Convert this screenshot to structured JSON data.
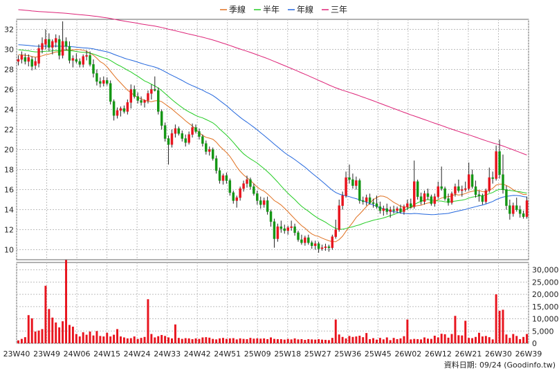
{
  "chart_data": {
    "type": "candlestick",
    "legend": [
      {
        "name": "季線",
        "color": "#e07020"
      },
      {
        "name": "半年",
        "color": "#22cc22"
      },
      {
        "name": "年線",
        "color": "#2266dd"
      },
      {
        "name": "三年",
        "color": "#dd2277"
      }
    ],
    "price_axis": {
      "min": 9,
      "max": 33,
      "ticks": [
        10,
        12,
        14,
        16,
        18,
        20,
        22,
        24,
        26,
        28,
        30,
        32
      ]
    },
    "volume_axis": {
      "min": 0,
      "max": 33000,
      "ticks": [
        0,
        5000,
        10000,
        15000,
        20000,
        25000,
        30000
      ],
      "tick_labels": [
        "0",
        "5,000",
        "10,000",
        "15,000",
        "20,000",
        "25,000",
        "30,000"
      ]
    },
    "x_labels": [
      "23W40",
      "23W49",
      "24W06",
      "24W15",
      "24W24",
      "24W33",
      "24W42",
      "24W51",
      "25W09",
      "25W18",
      "25W27",
      "25W36",
      "25W45",
      "26W02",
      "26W12",
      "26W21",
      "26W30",
      "26W39"
    ],
    "candles": [
      {
        "o": 28.8,
        "h": 29.4,
        "l": 28.4,
        "c": 29.0
      },
      {
        "o": 29.0,
        "h": 29.8,
        "l": 28.6,
        "c": 29.4
      },
      {
        "o": 29.2,
        "h": 29.6,
        "l": 28.5,
        "c": 28.8
      },
      {
        "o": 28.8,
        "h": 29.5,
        "l": 28.3,
        "c": 29.2
      },
      {
        "o": 29.0,
        "h": 29.3,
        "l": 27.9,
        "c": 28.3
      },
      {
        "o": 28.4,
        "h": 29.2,
        "l": 28.0,
        "c": 28.8
      },
      {
        "o": 28.6,
        "h": 30.5,
        "l": 28.2,
        "c": 30.1
      },
      {
        "o": 30.0,
        "h": 31.2,
        "l": 29.6,
        "c": 30.6
      },
      {
        "o": 30.5,
        "h": 32.0,
        "l": 30.0,
        "c": 31.0
      },
      {
        "o": 31.0,
        "h": 31.6,
        "l": 29.8,
        "c": 30.2
      },
      {
        "o": 30.2,
        "h": 31.0,
        "l": 29.5,
        "c": 30.8
      },
      {
        "o": 30.7,
        "h": 31.5,
        "l": 30.2,
        "c": 31.1
      },
      {
        "o": 31.0,
        "h": 31.4,
        "l": 29.0,
        "c": 29.4
      },
      {
        "o": 29.4,
        "h": 32.8,
        "l": 29.1,
        "c": 30.8
      },
      {
        "o": 30.8,
        "h": 31.2,
        "l": 29.9,
        "c": 30.3
      },
      {
        "o": 30.3,
        "h": 30.8,
        "l": 28.6,
        "c": 28.9
      },
      {
        "o": 28.9,
        "h": 29.4,
        "l": 28.2,
        "c": 29.1
      },
      {
        "o": 29.0,
        "h": 29.6,
        "l": 28.6,
        "c": 28.8
      },
      {
        "o": 28.8,
        "h": 29.1,
        "l": 28.2,
        "c": 28.5
      },
      {
        "o": 28.5,
        "h": 29.5,
        "l": 28.2,
        "c": 29.3
      },
      {
        "o": 29.3,
        "h": 29.9,
        "l": 28.9,
        "c": 29.4
      },
      {
        "o": 29.4,
        "h": 29.8,
        "l": 28.3,
        "c": 28.5
      },
      {
        "o": 28.5,
        "h": 29.0,
        "l": 27.2,
        "c": 27.6
      },
      {
        "o": 27.6,
        "h": 28.0,
        "l": 26.4,
        "c": 26.8
      },
      {
        "o": 26.8,
        "h": 27.2,
        "l": 26.2,
        "c": 26.6
      },
      {
        "o": 26.6,
        "h": 27.3,
        "l": 26.3,
        "c": 26.9
      },
      {
        "o": 26.9,
        "h": 27.2,
        "l": 26.4,
        "c": 26.6
      },
      {
        "o": 26.6,
        "h": 26.9,
        "l": 24.5,
        "c": 24.8
      },
      {
        "o": 24.8,
        "h": 25.0,
        "l": 22.9,
        "c": 23.4
      },
      {
        "o": 23.4,
        "h": 24.2,
        "l": 23.1,
        "c": 23.9
      },
      {
        "o": 23.9,
        "h": 24.3,
        "l": 23.3,
        "c": 24.1
      },
      {
        "o": 24.1,
        "h": 24.4,
        "l": 23.6,
        "c": 23.8
      },
      {
        "o": 23.8,
        "h": 25.0,
        "l": 23.5,
        "c": 24.7
      },
      {
        "o": 24.7,
        "h": 26.5,
        "l": 24.1,
        "c": 26.0
      },
      {
        "o": 26.0,
        "h": 26.4,
        "l": 25.1,
        "c": 25.3
      },
      {
        "o": 25.3,
        "h": 25.7,
        "l": 24.6,
        "c": 24.9
      },
      {
        "o": 24.9,
        "h": 25.3,
        "l": 24.4,
        "c": 24.7
      },
      {
        "o": 24.7,
        "h": 25.0,
        "l": 24.2,
        "c": 24.9
      },
      {
        "o": 24.9,
        "h": 25.9,
        "l": 24.6,
        "c": 25.6
      },
      {
        "o": 25.6,
        "h": 26.5,
        "l": 25.0,
        "c": 26.0
      },
      {
        "o": 26.0,
        "h": 27.3,
        "l": 25.8,
        "c": 25.9
      },
      {
        "o": 25.9,
        "h": 26.2,
        "l": 23.5,
        "c": 23.8
      },
      {
        "o": 23.8,
        "h": 24.0,
        "l": 22.0,
        "c": 22.4
      },
      {
        "o": 22.4,
        "h": 22.7,
        "l": 20.8,
        "c": 21.1
      },
      {
        "o": 21.1,
        "h": 21.4,
        "l": 18.5,
        "c": 20.5
      },
      {
        "o": 20.5,
        "h": 22.0,
        "l": 20.2,
        "c": 21.6
      },
      {
        "o": 21.6,
        "h": 22.5,
        "l": 21.2,
        "c": 22.1
      },
      {
        "o": 22.1,
        "h": 22.3,
        "l": 21.4,
        "c": 21.6
      },
      {
        "o": 21.6,
        "h": 21.9,
        "l": 20.8,
        "c": 21.1
      },
      {
        "o": 21.1,
        "h": 21.5,
        "l": 20.3,
        "c": 20.7
      },
      {
        "o": 20.7,
        "h": 21.8,
        "l": 20.5,
        "c": 21.5
      },
      {
        "o": 21.5,
        "h": 22.6,
        "l": 21.2,
        "c": 22.2
      },
      {
        "o": 22.2,
        "h": 22.5,
        "l": 21.6,
        "c": 21.8
      },
      {
        "o": 21.8,
        "h": 22.1,
        "l": 21.0,
        "c": 21.3
      },
      {
        "o": 21.3,
        "h": 21.5,
        "l": 20.3,
        "c": 20.6
      },
      {
        "o": 20.6,
        "h": 20.9,
        "l": 19.5,
        "c": 19.8
      },
      {
        "o": 19.8,
        "h": 20.3,
        "l": 19.4,
        "c": 20.0
      },
      {
        "o": 20.0,
        "h": 20.2,
        "l": 18.9,
        "c": 19.1
      },
      {
        "o": 19.1,
        "h": 19.4,
        "l": 17.6,
        "c": 17.9
      },
      {
        "o": 17.9,
        "h": 18.2,
        "l": 16.6,
        "c": 16.9
      },
      {
        "o": 16.9,
        "h": 17.6,
        "l": 16.5,
        "c": 17.4
      },
      {
        "o": 17.4,
        "h": 17.7,
        "l": 16.6,
        "c": 16.9
      },
      {
        "o": 16.9,
        "h": 17.1,
        "l": 15.4,
        "c": 15.7
      },
      {
        "o": 15.7,
        "h": 15.9,
        "l": 14.6,
        "c": 14.9
      },
      {
        "o": 14.9,
        "h": 15.4,
        "l": 14.2,
        "c": 15.2
      },
      {
        "o": 15.2,
        "h": 16.3,
        "l": 14.9,
        "c": 16.1
      },
      {
        "o": 16.1,
        "h": 16.9,
        "l": 15.8,
        "c": 16.6
      },
      {
        "o": 16.6,
        "h": 17.4,
        "l": 16.2,
        "c": 17.0
      },
      {
        "o": 17.0,
        "h": 17.2,
        "l": 16.0,
        "c": 16.3
      },
      {
        "o": 16.3,
        "h": 16.6,
        "l": 15.4,
        "c": 15.6
      },
      {
        "o": 15.6,
        "h": 15.9,
        "l": 14.5,
        "c": 14.9
      },
      {
        "o": 14.9,
        "h": 15.3,
        "l": 14.1,
        "c": 14.5
      },
      {
        "o": 14.5,
        "h": 15.2,
        "l": 14.2,
        "c": 14.9
      },
      {
        "o": 14.9,
        "h": 15.3,
        "l": 13.5,
        "c": 13.8
      },
      {
        "o": 13.8,
        "h": 14.0,
        "l": 12.3,
        "c": 12.8
      },
      {
        "o": 12.8,
        "h": 13.1,
        "l": 10.2,
        "c": 11.1
      },
      {
        "o": 11.1,
        "h": 12.6,
        "l": 10.8,
        "c": 12.3
      },
      {
        "o": 12.3,
        "h": 12.9,
        "l": 11.7,
        "c": 12.1
      },
      {
        "o": 12.1,
        "h": 12.5,
        "l": 11.6,
        "c": 11.9
      },
      {
        "o": 11.9,
        "h": 12.4,
        "l": 11.5,
        "c": 12.2
      },
      {
        "o": 12.2,
        "h": 12.9,
        "l": 11.9,
        "c": 12.3
      },
      {
        "o": 12.3,
        "h": 12.6,
        "l": 11.4,
        "c": 11.7
      },
      {
        "o": 11.7,
        "h": 11.9,
        "l": 10.8,
        "c": 11.0
      },
      {
        "o": 11.0,
        "h": 11.5,
        "l": 10.5,
        "c": 10.7
      },
      {
        "o": 10.7,
        "h": 11.4,
        "l": 10.4,
        "c": 11.2
      },
      {
        "o": 11.2,
        "h": 11.5,
        "l": 10.5,
        "c": 10.7
      },
      {
        "o": 10.7,
        "h": 10.9,
        "l": 10.1,
        "c": 10.4
      },
      {
        "o": 10.4,
        "h": 10.9,
        "l": 10.0,
        "c": 10.6
      },
      {
        "o": 10.6,
        "h": 10.8,
        "l": 9.7,
        "c": 10.1
      },
      {
        "o": 10.1,
        "h": 10.5,
        "l": 9.9,
        "c": 10.2
      },
      {
        "o": 10.2,
        "h": 10.6,
        "l": 9.9,
        "c": 10.3
      },
      {
        "o": 10.3,
        "h": 10.5,
        "l": 9.8,
        "c": 10.2
      },
      {
        "o": 10.2,
        "h": 11.5,
        "l": 10.0,
        "c": 11.3
      },
      {
        "o": 11.3,
        "h": 13.0,
        "l": 11.1,
        "c": 12.0
      },
      {
        "o": 12.0,
        "h": 15.0,
        "l": 11.8,
        "c": 14.4
      },
      {
        "o": 14.4,
        "h": 15.8,
        "l": 14.0,
        "c": 15.4
      },
      {
        "o": 15.4,
        "h": 17.8,
        "l": 15.2,
        "c": 17.2
      },
      {
        "o": 17.2,
        "h": 18.5,
        "l": 16.6,
        "c": 17.0
      },
      {
        "o": 17.0,
        "h": 17.6,
        "l": 16.1,
        "c": 16.4
      },
      {
        "o": 16.4,
        "h": 17.3,
        "l": 16.0,
        "c": 16.9
      },
      {
        "o": 16.9,
        "h": 17.1,
        "l": 14.6,
        "c": 14.9
      },
      {
        "o": 14.9,
        "h": 15.3,
        "l": 14.5,
        "c": 14.8
      },
      {
        "o": 14.8,
        "h": 15.5,
        "l": 14.4,
        "c": 15.2
      },
      {
        "o": 15.2,
        "h": 15.6,
        "l": 14.5,
        "c": 14.7
      },
      {
        "o": 14.7,
        "h": 15.1,
        "l": 14.2,
        "c": 14.6
      },
      {
        "o": 14.6,
        "h": 15.4,
        "l": 14.1,
        "c": 14.3
      },
      {
        "o": 14.3,
        "h": 14.8,
        "l": 13.6,
        "c": 13.9
      },
      {
        "o": 13.9,
        "h": 14.4,
        "l": 13.4,
        "c": 14.1
      },
      {
        "o": 14.1,
        "h": 14.6,
        "l": 13.5,
        "c": 13.8
      },
      {
        "o": 13.8,
        "h": 14.3,
        "l": 13.2,
        "c": 14.0
      },
      {
        "o": 14.0,
        "h": 14.4,
        "l": 13.6,
        "c": 13.9
      },
      {
        "o": 13.9,
        "h": 14.3,
        "l": 13.7,
        "c": 14.1
      },
      {
        "o": 14.1,
        "h": 14.5,
        "l": 13.6,
        "c": 13.8
      },
      {
        "o": 13.8,
        "h": 14.5,
        "l": 13.5,
        "c": 14.3
      },
      {
        "o": 14.3,
        "h": 15.0,
        "l": 14.0,
        "c": 14.6
      },
      {
        "o": 14.6,
        "h": 15.1,
        "l": 14.1,
        "c": 14.3
      },
      {
        "o": 14.3,
        "h": 18.9,
        "l": 14.1,
        "c": 16.8
      },
      {
        "o": 16.8,
        "h": 17.0,
        "l": 15.0,
        "c": 15.3
      },
      {
        "o": 15.3,
        "h": 15.7,
        "l": 14.5,
        "c": 14.8
      },
      {
        "o": 14.8,
        "h": 15.9,
        "l": 14.5,
        "c": 15.6
      },
      {
        "o": 15.6,
        "h": 16.1,
        "l": 15.0,
        "c": 15.3
      },
      {
        "o": 15.3,
        "h": 15.5,
        "l": 14.4,
        "c": 14.6
      },
      {
        "o": 14.6,
        "h": 15.6,
        "l": 14.3,
        "c": 15.3
      },
      {
        "o": 15.3,
        "h": 16.8,
        "l": 15.1,
        "c": 16.3
      },
      {
        "o": 16.3,
        "h": 18.3,
        "l": 15.9,
        "c": 16.1
      },
      {
        "o": 16.1,
        "h": 16.3,
        "l": 14.9,
        "c": 15.1
      },
      {
        "o": 15.1,
        "h": 15.6,
        "l": 14.4,
        "c": 14.7
      },
      {
        "o": 14.7,
        "h": 15.8,
        "l": 14.5,
        "c": 15.6
      },
      {
        "o": 15.6,
        "h": 16.6,
        "l": 15.3,
        "c": 16.3
      },
      {
        "o": 16.3,
        "h": 17.0,
        "l": 15.7,
        "c": 15.9
      },
      {
        "o": 15.9,
        "h": 16.4,
        "l": 15.3,
        "c": 16.0
      },
      {
        "o": 16.0,
        "h": 16.8,
        "l": 15.8,
        "c": 16.1
      },
      {
        "o": 16.1,
        "h": 18.7,
        "l": 15.9,
        "c": 17.5
      },
      {
        "o": 17.5,
        "h": 18.0,
        "l": 16.1,
        "c": 16.3
      },
      {
        "o": 16.3,
        "h": 16.9,
        "l": 15.2,
        "c": 15.5
      },
      {
        "o": 15.5,
        "h": 15.9,
        "l": 14.8,
        "c": 15.4
      },
      {
        "o": 15.4,
        "h": 15.6,
        "l": 14.5,
        "c": 14.8
      },
      {
        "o": 14.8,
        "h": 16.1,
        "l": 14.6,
        "c": 15.9
      },
      {
        "o": 15.9,
        "h": 18.2,
        "l": 15.7,
        "c": 17.2
      },
      {
        "o": 17.2,
        "h": 17.8,
        "l": 16.6,
        "c": 17.1
      },
      {
        "o": 17.1,
        "h": 20.4,
        "l": 16.9,
        "c": 19.8
      },
      {
        "o": 19.8,
        "h": 21.0,
        "l": 17.1,
        "c": 17.5
      },
      {
        "o": 17.5,
        "h": 19.5,
        "l": 15.6,
        "c": 16.0
      },
      {
        "o": 16.0,
        "h": 16.4,
        "l": 14.0,
        "c": 14.4
      },
      {
        "o": 14.4,
        "h": 15.0,
        "l": 13.0,
        "c": 13.6
      },
      {
        "o": 13.6,
        "h": 14.7,
        "l": 13.3,
        "c": 14.4
      },
      {
        "o": 14.4,
        "h": 15.2,
        "l": 13.8,
        "c": 14.0
      },
      {
        "o": 14.0,
        "h": 14.4,
        "l": 13.2,
        "c": 13.6
      },
      {
        "o": 13.6,
        "h": 13.9,
        "l": 13.1,
        "c": 13.3
      },
      {
        "o": 13.3,
        "h": 15.3,
        "l": 13.1,
        "c": 14.9
      }
    ],
    "volumes": [
      1200,
      1800,
      2500,
      11500,
      10200,
      4800,
      5200,
      5800,
      23500,
      14000,
      10500,
      8500,
      6500,
      9000,
      34000,
      7500,
      6800,
      3800,
      2800,
      4500,
      3500,
      4800,
      3200,
      5000,
      3000,
      2800,
      4300,
      2800,
      3500,
      5800,
      2800,
      2400,
      2000,
      2100,
      2800,
      1800,
      2200,
      2600,
      18000,
      3800,
      2400,
      2900,
      3400,
      3000,
      2400,
      2000,
      7700,
      2200,
      1800,
      2100,
      2000,
      1700,
      2000,
      1800,
      2400,
      2500,
      2300,
      1800,
      1600,
      2000,
      2200,
      1800,
      2000,
      2100,
      1600,
      2000,
      1800,
      1700,
      2200,
      1900,
      2000,
      1900,
      2000,
      1700,
      2400,
      1800,
      1700,
      1700,
      1500,
      1800,
      1600,
      2000,
      1600,
      1700,
      1400,
      1700,
      1600,
      1500,
      1700,
      1500,
      1400,
      1300,
      2200,
      9700,
      3600,
      2600,
      2000,
      3000,
      2600,
      2800,
      3100,
      2500,
      4200,
      1700,
      2100,
      1500,
      2200,
      1600,
      2400,
      1300,
      2200,
      1700,
      2000,
      2900,
      9700,
      1600,
      1800,
      1700,
      1600,
      2400,
      1900,
      1800,
      3100,
      2400,
      3900,
      3700,
      2300,
      3800,
      11200,
      3300,
      3200,
      9200,
      2200,
      2100,
      2600,
      4300,
      2800,
      3000,
      2500,
      1600,
      20000,
      13300,
      13700,
      3600,
      2200,
      3800,
      3000,
      1700,
      2600,
      3800
    ]
  },
  "footer": {
    "source": "資料日期: 09/24  (Goodinfo.tw)"
  }
}
